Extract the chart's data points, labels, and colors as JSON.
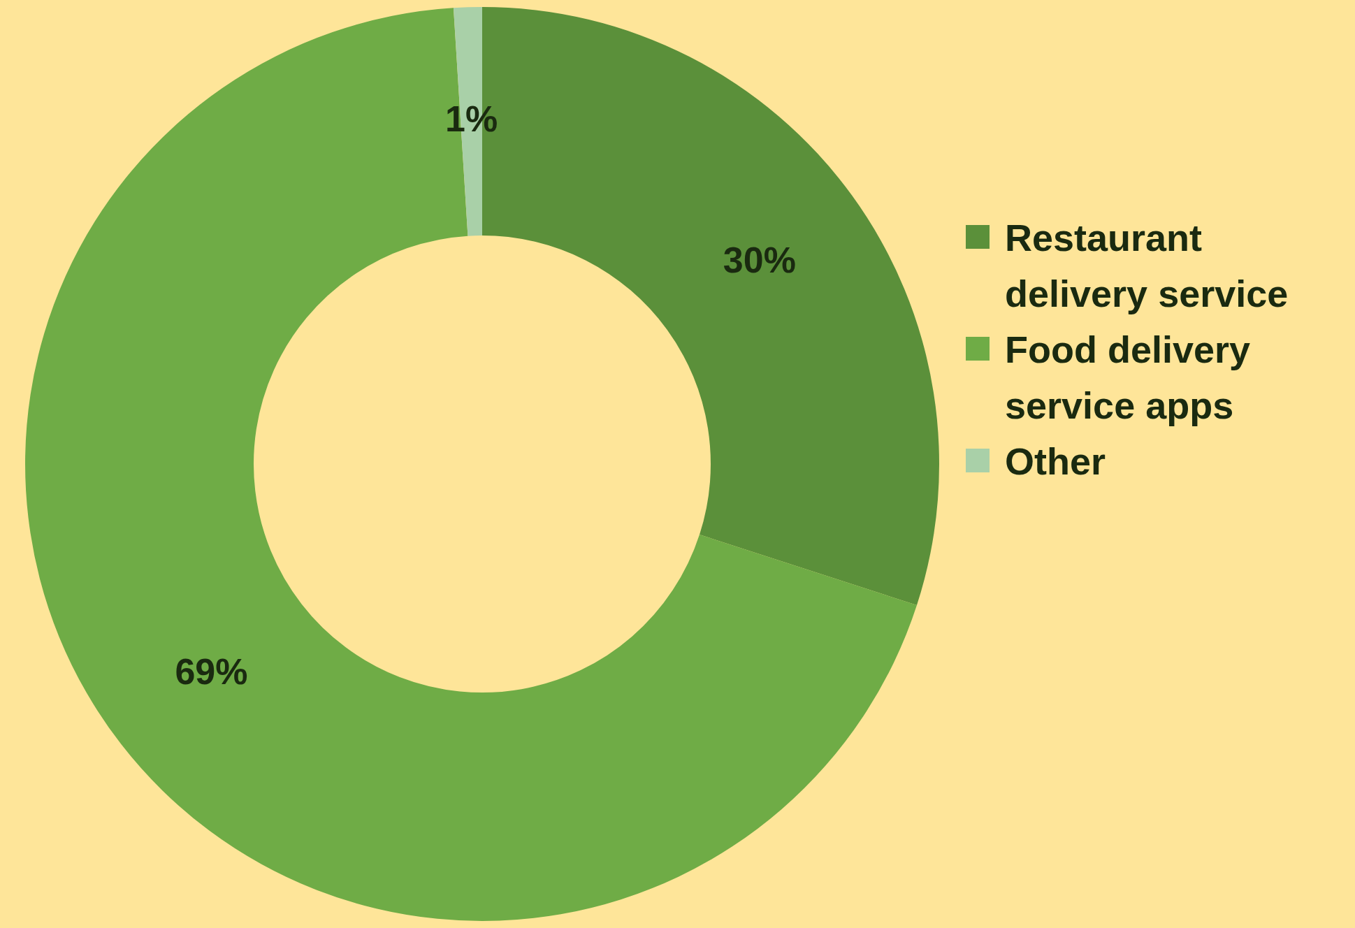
{
  "chart_data": {
    "type": "donut",
    "categories": [
      "Restaurant delivery service",
      "Food delivery service apps",
      "Other"
    ],
    "values": [
      30,
      69,
      1
    ],
    "colors": [
      "#5b903a",
      "#6fac46",
      "#a9d0a8"
    ],
    "value_labels": [
      "30%",
      "69%",
      "1%"
    ],
    "legend": "right"
  }
}
